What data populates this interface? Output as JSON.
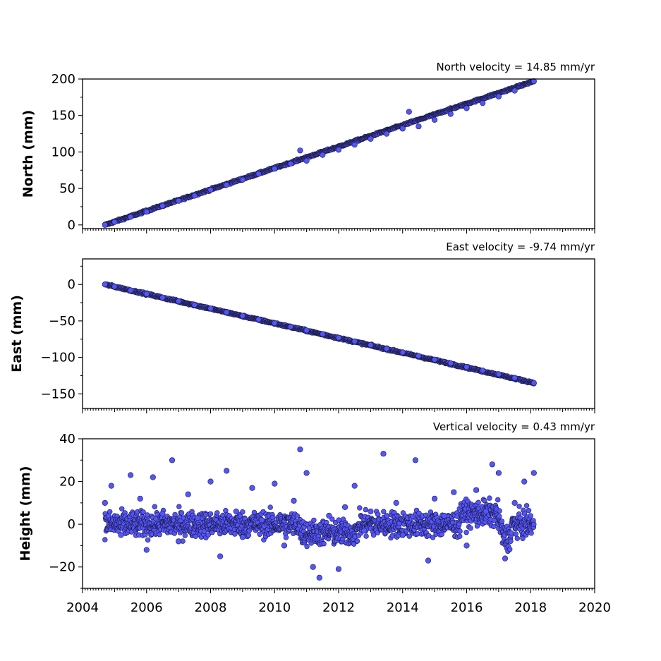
{
  "chart_data": [
    {
      "type": "scatter",
      "title": "North velocity = 14.85 mm/yr",
      "ylabel": "North (mm)",
      "xlim": [
        2004,
        2020
      ],
      "ylim": [
        -5,
        200
      ],
      "yticks": [
        0,
        50,
        100,
        150,
        200
      ],
      "ytick_labels": [
        "0",
        "50",
        "100",
        "150",
        "200"
      ],
      "series": [
        {
          "color": "#5555ff",
          "trend": {
            "start": [
              2004.7,
              0
            ],
            "end": [
              2018.1,
              197
            ]
          },
          "x": [
            2004.7,
            2005.0,
            2005.5,
            2006.0,
            2006.5,
            2007.0,
            2007.5,
            2008.0,
            2008.5,
            2009.0,
            2009.5,
            2010.0,
            2010.5,
            2010.8,
            2011.0,
            2011.5,
            2012.0,
            2012.5,
            2013.0,
            2013.5,
            2014.0,
            2014.2,
            2014.5,
            2015.0,
            2015.5,
            2016.0,
            2016.5,
            2017.0,
            2017.5,
            2018.1
          ],
          "y": [
            0,
            4,
            11,
            18,
            26,
            33,
            40,
            48,
            55,
            62,
            70,
            77,
            84,
            102,
            88,
            96,
            103,
            110,
            118,
            125,
            132,
            155,
            135,
            144,
            152,
            160,
            167,
            176,
            184,
            197
          ]
        }
      ]
    },
    {
      "type": "scatter",
      "title": "East velocity = -9.74 mm/yr",
      "ylabel": "East (mm)",
      "xlim": [
        2004,
        2020
      ],
      "ylim": [
        -170,
        35
      ],
      "yticks": [
        0,
        -50,
        -100,
        -150
      ],
      "ytick_labels": [
        "0",
        "−50",
        "−100",
        "−150"
      ],
      "series": [
        {
          "color": "#5555ff",
          "trend": {
            "start": [
              2004.7,
              0
            ],
            "end": [
              2018.1,
              -135
            ]
          },
          "x": [
            2004.7,
            2005.0,
            2005.5,
            2006.0,
            2006.5,
            2007.0,
            2007.5,
            2008.0,
            2008.5,
            2009.0,
            2009.5,
            2010.0,
            2010.5,
            2011.0,
            2011.5,
            2012.0,
            2012.5,
            2013.0,
            2013.5,
            2014.0,
            2014.5,
            2015.0,
            2015.5,
            2016.0,
            2016.5,
            2017.0,
            2017.5,
            2018.1
          ],
          "y": [
            0,
            -3,
            -8,
            -13,
            -18,
            -23,
            -28,
            -33,
            -38,
            -43,
            -48,
            -53,
            -58,
            -63,
            -68,
            -73,
            -78,
            -83,
            -88,
            -93,
            -98,
            -103,
            -108,
            -113,
            -118,
            -123,
            -128,
            -135
          ]
        }
      ]
    },
    {
      "type": "scatter",
      "title": "Vertical velocity = 0.43 mm/yr",
      "ylabel": "Height (mm)",
      "xlabel": "",
      "xlim": [
        2004,
        2020
      ],
      "ylim": [
        -30,
        40
      ],
      "yticks": [
        40,
        20,
        0,
        -20
      ],
      "ytick_labels": [
        "40",
        "20",
        "0",
        "−20"
      ],
      "xticks": [
        2004,
        2006,
        2008,
        2010,
        2012,
        2014,
        2016,
        2018,
        2020
      ],
      "xtick_labels": [
        "2004",
        "2006",
        "2008",
        "2010",
        "2012",
        "2014",
        "2016",
        "2018",
        "2020"
      ],
      "series": [
        {
          "color": "#5555ff",
          "x": [
            2004.7,
            2004.9,
            2005.2,
            2005.5,
            2005.8,
            2006.0,
            2006.2,
            2006.5,
            2006.8,
            2007.0,
            2007.3,
            2007.6,
            2008.0,
            2008.3,
            2008.5,
            2008.8,
            2009.0,
            2009.3,
            2009.6,
            2010.0,
            2010.3,
            2010.6,
            2010.8,
            2011.0,
            2011.2,
            2011.4,
            2011.7,
            2012.0,
            2012.2,
            2012.5,
            2012.8,
            2013.0,
            2013.4,
            2013.8,
            2014.0,
            2014.4,
            2014.8,
            2015.0,
            2015.3,
            2015.6,
            2016.0,
            2016.3,
            2016.6,
            2016.8,
            2017.0,
            2017.2,
            2017.5,
            2017.8,
            2018.1
          ],
          "y": [
            10,
            18,
            -5,
            23,
            12,
            -12,
            22,
            5,
            30,
            -8,
            14,
            3,
            20,
            -15,
            25,
            6,
            -6,
            17,
            2,
            19,
            -10,
            11,
            35,
            24,
            -20,
            -25,
            4,
            -21,
            8,
            18,
            -3,
            6,
            33,
            10,
            -5,
            30,
            -17,
            12,
            4,
            15,
            -10,
            16,
            6,
            28,
            24,
            -16,
            10,
            20,
            24
          ]
        }
      ]
    }
  ]
}
